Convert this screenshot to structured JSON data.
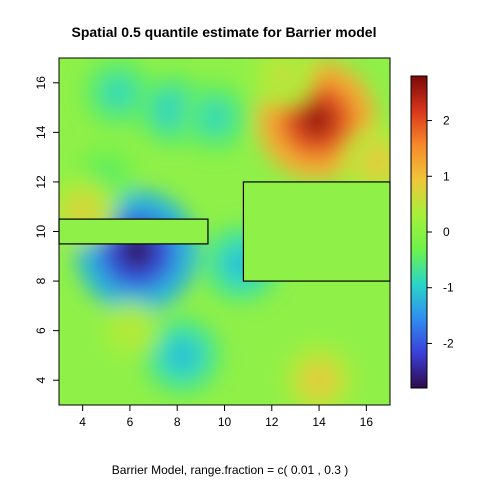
{
  "chart_data": {
    "type": "heatmap",
    "title": "Spatial 0.5 quantile estimate for Barrier model",
    "subtitle": "Barrier Model, range.fraction = c( 0.01 ,  0.3 )",
    "xlabel": "",
    "ylabel": "",
    "xlim": [
      3,
      17
    ],
    "ylim": [
      3,
      17
    ],
    "x_ticks": [
      4,
      6,
      8,
      10,
      12,
      14,
      16
    ],
    "x_tick_labels": [
      "4",
      "6",
      "8",
      "10",
      "12",
      "14",
      "16"
    ],
    "y_ticks": [
      4,
      6,
      8,
      10,
      12,
      14,
      16
    ],
    "y_tick_labels": [
      "4",
      "6",
      "8",
      "10",
      "12",
      "14",
      "16"
    ],
    "grid": false,
    "colorbar": {
      "range": [
        -2.8,
        2.8
      ],
      "ticks": [
        2,
        1,
        0,
        -1,
        -2
      ],
      "tick_labels": [
        "2",
        "1",
        "0",
        "-1",
        "-2"
      ],
      "placement": "right",
      "colors": [
        "#2e0a4a",
        "#3b3fd8",
        "#2f8df0",
        "#29d6c8",
        "#6ff24a",
        "#a6f03a",
        "#f0c63a",
        "#f78a2a",
        "#d8361b",
        "#7a0909"
      ]
    },
    "barriers": [
      {
        "x": [
          3,
          9.3
        ],
        "y": [
          9.5,
          10.5
        ]
      },
      {
        "x": [
          10.8,
          17
        ],
        "y": [
          8,
          12
        ]
      }
    ],
    "field_peaks": [
      {
        "x": 6.3,
        "y": 9.2,
        "value": -2.7
      },
      {
        "x": 5.5,
        "y": 15.6,
        "value": -0.9
      },
      {
        "x": 7.8,
        "y": 14.9,
        "value": -1.0
      },
      {
        "x": 9.6,
        "y": 14.6,
        "value": -0.9
      },
      {
        "x": 8.2,
        "y": 5.0,
        "value": -1.2
      },
      {
        "x": 10.7,
        "y": 8.7,
        "value": -1.2
      },
      {
        "x": 5.0,
        "y": 12.3,
        "value": -0.5
      },
      {
        "x": 13.9,
        "y": 14.5,
        "value": 2.6
      },
      {
        "x": 16.5,
        "y": 12.8,
        "value": 0.9
      },
      {
        "x": 4.0,
        "y": 10.8,
        "value": 0.8
      },
      {
        "x": 14.0,
        "y": 4.0,
        "value": 0.9
      },
      {
        "x": 12.5,
        "y": 16.3,
        "value": 0.6
      },
      {
        "x": 6.0,
        "y": 6.0,
        "value": 0.5
      }
    ]
  }
}
